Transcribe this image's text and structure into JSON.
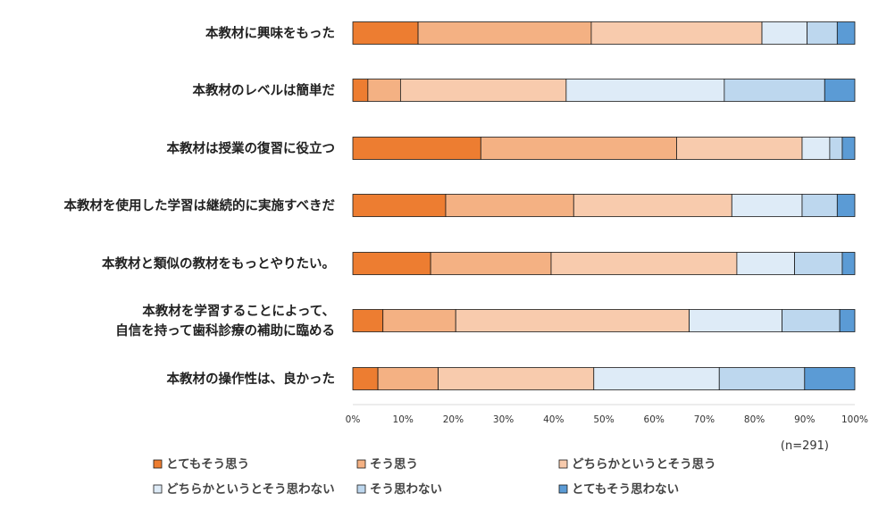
{
  "chart_data": {
    "type": "bar",
    "orientation": "horizontal",
    "stacked": "percent",
    "note": "(n=291)",
    "categories": [
      [
        "本教材に興味をもった"
      ],
      [
        "本教材のレベルは簡単だ"
      ],
      [
        "本教材は授業の復習に役立つ"
      ],
      [
        "本教材を使用した学習は継続的に実施すべきだ"
      ],
      [
        "本教材と類似の教材をもっとやりたい。"
      ],
      [
        "本教材を学習することによって、",
        "自信を持って歯科診療の補助に臨める"
      ],
      [
        "本教材の操作性は、良かった"
      ]
    ],
    "series": [
      {
        "name": "とてもそう思う",
        "color": "#ED7D31",
        "values": [
          13,
          3,
          25.5,
          18.5,
          15.5,
          6,
          5
        ]
      },
      {
        "name": "そう思う",
        "color": "#F4B183",
        "values": [
          34.5,
          6.5,
          39,
          25.5,
          24,
          14.5,
          12
        ]
      },
      {
        "name": "どちらかというとそう思う",
        "color": "#F8CBAD",
        "values": [
          34,
          33,
          25,
          31.5,
          37,
          46.5,
          31
        ]
      },
      {
        "name": "どちらかというとそう思わない",
        "color": "#DEEBF7",
        "values": [
          9,
          31.5,
          5.5,
          14,
          11.5,
          18.5,
          25
        ]
      },
      {
        "name": "そう思わない",
        "color": "#BDD7EE",
        "values": [
          6,
          20,
          2.5,
          7,
          9.5,
          11.5,
          17
        ]
      },
      {
        "name": "とてもそう思わない",
        "color": "#5B9BD5",
        "values": [
          3.5,
          6,
          2.5,
          3.5,
          2.5,
          3,
          10
        ]
      }
    ],
    "xaxis": {
      "range": [
        0,
        100
      ],
      "ticks": [
        "0%",
        "10%",
        "20%",
        "30%",
        "40%",
        "50%",
        "60%",
        "70%",
        "80%",
        "90%",
        "100%"
      ],
      "grid": false
    },
    "legend_position": "bottom"
  }
}
